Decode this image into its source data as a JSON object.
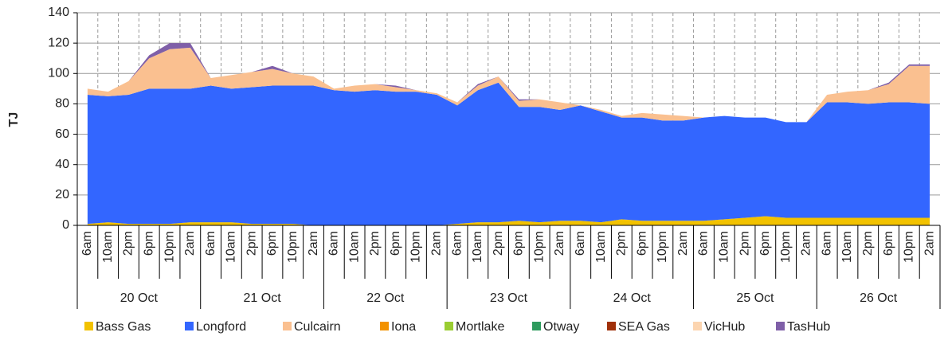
{
  "chart_data": {
    "type": "stacked-area",
    "y_label": "TJ",
    "categories": [
      "6am",
      "10am",
      "2pm",
      "6pm",
      "10pm",
      "2am",
      "6am",
      "10am",
      "2pm",
      "6pm",
      "10pm",
      "2am",
      "6am",
      "10am",
      "2pm",
      "6pm",
      "10pm",
      "2am",
      "6am",
      "10am",
      "2pm",
      "6pm",
      "10pm",
      "2am",
      "6am",
      "10am",
      "2pm",
      "6pm",
      "10pm",
      "2am",
      "6am",
      "10am",
      "2pm",
      "6pm",
      "10pm",
      "2am",
      "6am",
      "10am",
      "2pm",
      "6pm",
      "10pm",
      "2am"
    ],
    "days": [
      "20 Oct",
      "21 Oct",
      "22 Oct",
      "23 Oct",
      "24 Oct",
      "25 Oct",
      "26 Oct"
    ],
    "ylim": [
      0,
      140
    ],
    "yticks": [
      0,
      20,
      40,
      60,
      80,
      100,
      120,
      140
    ],
    "grid": true,
    "series": [
      {
        "name": "Bass Gas",
        "color": "#f2c200",
        "values": [
          1,
          2,
          1,
          1,
          1,
          2,
          2,
          2,
          1,
          1,
          1,
          0,
          0,
          0,
          0,
          0,
          0,
          0,
          1,
          2,
          2,
          3,
          2,
          3,
          3,
          2,
          4,
          3,
          3,
          3,
          3,
          4,
          5,
          6,
          5,
          5,
          5,
          5,
          5,
          5,
          5,
          5
        ]
      },
      {
        "name": "Longford",
        "color": "#3366ff",
        "values": [
          85,
          83,
          85,
          89,
          89,
          88,
          90,
          88,
          90,
          91,
          91,
          92,
          89,
          88,
          89,
          88,
          88,
          86,
          78,
          87,
          92,
          75,
          76,
          73,
          76,
          73,
          67,
          68,
          66,
          66,
          68,
          68,
          66,
          65,
          63,
          63,
          76,
          76,
          75,
          76,
          76,
          75
        ]
      },
      {
        "name": "Culcairn",
        "color": "#fac090",
        "values": [
          4,
          3,
          9,
          20,
          26,
          27,
          5,
          9,
          10,
          11,
          8,
          6,
          1,
          4,
          4,
          3,
          1,
          1,
          2,
          3,
          4,
          4,
          5,
          5,
          0,
          1,
          1,
          3,
          4,
          3,
          0,
          0,
          0,
          0,
          0,
          0,
          5,
          7,
          9,
          12,
          24,
          25
        ]
      },
      {
        "name": "Iona",
        "color": "#f39200",
        "values": [
          0,
          0,
          0,
          0,
          0,
          0,
          0,
          0,
          0,
          0,
          0,
          0,
          0,
          0,
          0,
          0,
          0,
          0,
          0,
          0,
          0,
          0,
          0,
          0,
          0,
          0,
          0,
          0,
          0,
          0,
          0,
          0,
          0,
          0,
          0,
          0,
          0,
          0,
          0,
          0,
          0,
          0
        ]
      },
      {
        "name": "Mortlake",
        "color": "#9acd32",
        "values": [
          0,
          0,
          0,
          0,
          0,
          0,
          0,
          0,
          0,
          0,
          0,
          0,
          0,
          0,
          0,
          0,
          0,
          0,
          0,
          0,
          0,
          0,
          0,
          0,
          0,
          0,
          0,
          0,
          0,
          0,
          0,
          0,
          0,
          0,
          0,
          0,
          0,
          0,
          0,
          0,
          0,
          0
        ]
      },
      {
        "name": "Otway",
        "color": "#2e9b5e",
        "values": [
          0,
          0,
          0,
          0,
          0,
          0,
          0,
          0,
          0,
          0,
          0,
          0,
          0,
          0,
          0,
          0,
          0,
          0,
          0,
          0,
          0,
          0,
          0,
          0,
          0,
          0,
          0,
          0,
          0,
          0,
          0,
          0,
          0,
          0,
          0,
          0,
          0,
          0,
          0,
          0,
          0,
          0
        ]
      },
      {
        "name": "SEA Gas",
        "color": "#a0300a",
        "values": [
          0,
          0,
          0,
          0,
          0,
          0,
          0,
          0,
          0,
          0,
          0,
          0,
          0,
          0,
          0,
          0,
          0,
          0,
          0,
          0,
          0,
          0,
          0,
          0,
          0,
          0,
          0,
          0,
          0,
          0,
          0,
          0,
          0,
          0,
          0,
          0,
          0,
          0,
          0,
          0,
          0,
          0
        ]
      },
      {
        "name": "VicHub",
        "color": "#fcd5b0",
        "values": [
          0,
          0,
          0,
          0,
          0,
          0,
          0,
          0,
          0,
          0,
          0,
          0,
          0,
          0,
          0,
          0,
          0,
          0,
          0,
          0,
          0,
          0,
          0,
          0,
          0,
          0,
          0,
          0,
          0,
          0,
          0,
          0,
          0,
          0,
          0,
          0,
          0,
          0,
          0,
          0,
          0,
          0
        ]
      },
      {
        "name": "TasHub",
        "color": "#7f5fa8",
        "values": [
          0,
          0,
          0,
          2,
          4,
          3,
          0,
          0,
          0,
          2,
          0,
          0,
          0,
          0,
          0,
          1,
          0,
          0,
          0,
          1,
          0,
          1,
          0,
          0,
          0,
          0,
          0,
          0,
          0,
          0,
          0,
          0,
          0,
          0,
          0,
          0,
          0,
          0,
          0,
          1,
          1,
          1
        ]
      }
    ]
  }
}
